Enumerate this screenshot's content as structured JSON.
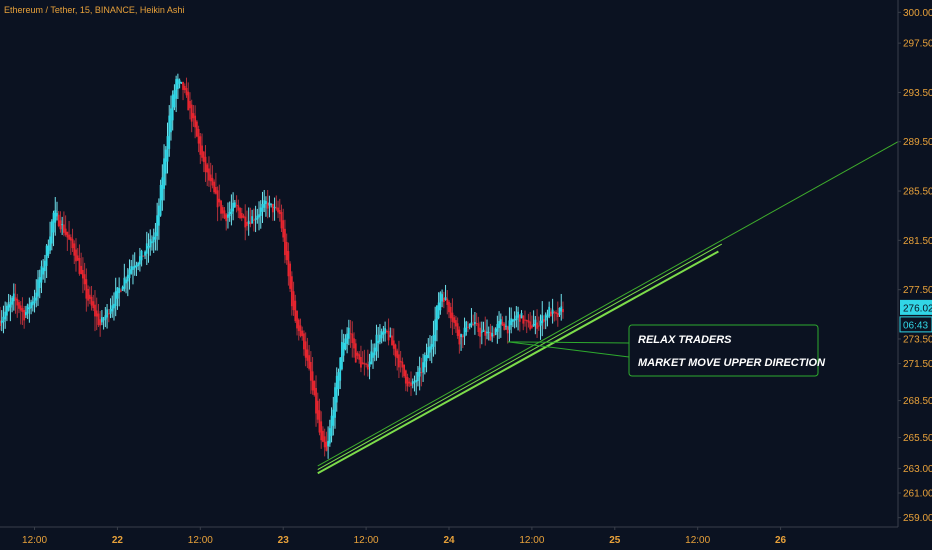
{
  "colors": {
    "background": "#0b1221",
    "up": "#31d6e6",
    "down": "#e6252f",
    "wick_up": "#6fe3ee",
    "wick_down": "#b0303a",
    "axis_text": "#e8a13a",
    "title_text": "#e8a13a",
    "trendline": "#7ddc4a",
    "trendline_thin": "#3fae2c",
    "callout_border": "#2eaa2e",
    "callout_text": "#ffffff",
    "price_badge_bg": "#31d6e6",
    "price_badge_text": "#0b1221",
    "axis_line": "#3a3f4a"
  },
  "header": {
    "title": "Ethereum / Tether, 15, BINANCE, Heikin Ashi"
  },
  "callout": {
    "line1": "RELAX TRADERS",
    "line2": "MARKET MOVE UPPER DIRECTION"
  },
  "price_badges": {
    "last_price": "276.02",
    "countdown": "06:43"
  },
  "chart_data": {
    "type": "candlestick",
    "title": "Ethereum / Tether, 15, BINANCE, Heikin Ashi",
    "chart_style": "Heikin Ashi",
    "x_tick_labels": [
      "12:00",
      "22",
      "12:00",
      "23",
      "12:00",
      "24",
      "12:00",
      "25",
      "12:00",
      "26"
    ],
    "x_tick_hours": [
      12,
      24,
      36,
      48,
      60,
      72,
      84,
      96,
      108,
      120
    ],
    "x_range_hours": [
      7,
      137
    ],
    "y_tick_labels": [
      "259.00",
      "261.00",
      "263.00",
      "265.50",
      "268.50",
      "271.50",
      "273.50",
      "277.50",
      "281.50",
      "285.50",
      "289.50",
      "293.50",
      "297.50",
      "300.00"
    ],
    "y_tick_values": [
      259.0,
      261.0,
      263.0,
      265.5,
      268.5,
      271.5,
      273.5,
      277.5,
      281.5,
      285.5,
      289.5,
      293.5,
      297.5,
      300.0
    ],
    "y_range": [
      258.0,
      301.0
    ],
    "y_axis_side": "right",
    "last_price": 276.02,
    "series_anchors": [
      {
        "h": 7.0,
        "price": 275.0
      },
      {
        "h": 9.0,
        "price": 276.8
      },
      {
        "h": 10.5,
        "price": 275.4
      },
      {
        "h": 12.0,
        "price": 277.0
      },
      {
        "h": 13.5,
        "price": 280.0
      },
      {
        "h": 14.8,
        "price": 283.8
      },
      {
        "h": 16.3,
        "price": 282.3
      },
      {
        "h": 18.0,
        "price": 280.2
      },
      {
        "h": 19.5,
        "price": 277.0
      },
      {
        "h": 21.5,
        "price": 274.6
      },
      {
        "h": 23.0,
        "price": 276.2
      },
      {
        "h": 24.5,
        "price": 277.8
      },
      {
        "h": 26.0,
        "price": 279.5
      },
      {
        "h": 27.5,
        "price": 280.2
      },
      {
        "h": 29.5,
        "price": 282.0
      },
      {
        "h": 31.5,
        "price": 291.5
      },
      {
        "h": 32.5,
        "price": 294.5
      },
      {
        "h": 33.5,
        "price": 293.8
      },
      {
        "h": 35.0,
        "price": 291.0
      },
      {
        "h": 36.5,
        "price": 287.5
      },
      {
        "h": 38.0,
        "price": 285.2
      },
      {
        "h": 39.5,
        "price": 283.3
      },
      {
        "h": 41.0,
        "price": 284.3
      },
      {
        "h": 42.5,
        "price": 283.0
      },
      {
        "h": 44.0,
        "price": 283.5
      },
      {
        "h": 45.5,
        "price": 284.5
      },
      {
        "h": 47.5,
        "price": 283.6
      },
      {
        "h": 48.5,
        "price": 279.5
      },
      {
        "h": 49.5,
        "price": 275.5
      },
      {
        "h": 51.0,
        "price": 273.0
      },
      {
        "h": 52.5,
        "price": 268.5
      },
      {
        "h": 53.5,
        "price": 265.0
      },
      {
        "h": 54.3,
        "price": 264.2
      },
      {
        "h": 55.2,
        "price": 268.0
      },
      {
        "h": 56.5,
        "price": 273.0
      },
      {
        "h": 57.5,
        "price": 274.4
      },
      {
        "h": 58.5,
        "price": 272.0
      },
      {
        "h": 60.0,
        "price": 271.0
      },
      {
        "h": 61.5,
        "price": 273.6
      },
      {
        "h": 63.0,
        "price": 274.0
      },
      {
        "h": 64.5,
        "price": 272.0
      },
      {
        "h": 65.5,
        "price": 270.5
      },
      {
        "h": 66.5,
        "price": 269.5
      },
      {
        "h": 68.0,
        "price": 271.0
      },
      {
        "h": 69.5,
        "price": 273.5
      },
      {
        "h": 70.8,
        "price": 277.5
      },
      {
        "h": 72.0,
        "price": 276.0
      },
      {
        "h": 73.5,
        "price": 273.5
      },
      {
        "h": 75.0,
        "price": 275.0
      },
      {
        "h": 76.5,
        "price": 274.0
      },
      {
        "h": 78.0,
        "price": 273.8
      },
      {
        "h": 79.5,
        "price": 274.8
      },
      {
        "h": 80.5,
        "price": 274.4
      },
      {
        "h": 82.0,
        "price": 275.5
      },
      {
        "h": 83.5,
        "price": 274.5
      },
      {
        "h": 85.0,
        "price": 274.8
      },
      {
        "h": 86.5,
        "price": 275.8
      },
      {
        "h": 87.5,
        "price": 275.2
      },
      {
        "h": 88.5,
        "price": 276.02
      }
    ],
    "trendlines": [
      {
        "name": "support",
        "from": {
          "h": 53.0,
          "price": 262.6
        },
        "to": {
          "h": 111.0,
          "price": 280.6
        }
      },
      {
        "name": "support-parallel",
        "from": {
          "h": 53.0,
          "price": 262.9
        },
        "to": {
          "h": 111.5,
          "price": 281.2
        }
      },
      {
        "name": "long-extension",
        "from": {
          "h": 53.0,
          "price": 263.2
        },
        "to": {
          "h": 137.0,
          "price": 289.5
        }
      }
    ]
  }
}
